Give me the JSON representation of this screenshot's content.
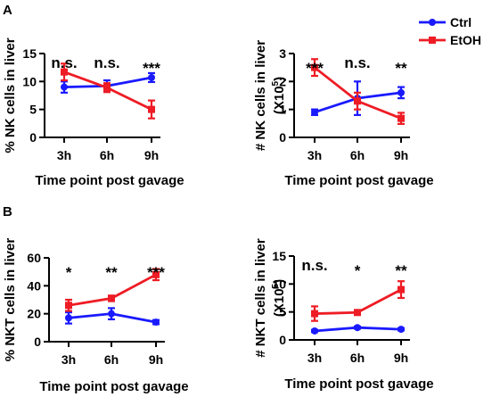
{
  "panel_labels": [
    "A",
    "B"
  ],
  "colors": {
    "Ctrl": "#1a1aff",
    "EtOH": "#ee1c24"
  },
  "legend": [
    {
      "name": "Ctrl",
      "color": "#1a1aff",
      "marker": "circle"
    },
    {
      "name": "EtOH",
      "color": "#ee1c24",
      "marker": "square"
    }
  ],
  "chart_data": [
    {
      "type": "line",
      "ylabel": "% NK cells in liver",
      "xlabel": "Time point post gavage",
      "categories": [
        "3h",
        "6h",
        "9h"
      ],
      "ylim": [
        0,
        15
      ],
      "yticks": [
        0,
        5,
        10,
        15
      ],
      "series": [
        {
          "name": "Ctrl",
          "values": [
            9.0,
            9.2,
            10.7
          ],
          "errors": [
            1.0,
            1.0,
            0.8
          ]
        },
        {
          "name": "EtOH",
          "values": [
            11.7,
            8.9,
            5.0
          ],
          "errors": [
            1.5,
            0.8,
            1.6
          ]
        }
      ],
      "significance": [
        "n.s.",
        "n.s.",
        "***"
      ]
    },
    {
      "type": "line",
      "ylabel": "# NK cells in liver",
      "yunit": "(X10",
      "yunit_exp": "5",
      "yunit_close": ")",
      "xlabel": "Time point post gavage",
      "categories": [
        "3h",
        "6h",
        "9h"
      ],
      "ylim": [
        0,
        3
      ],
      "yticks": [
        0,
        1,
        2,
        3
      ],
      "series": [
        {
          "name": "Ctrl",
          "values": [
            0.9,
            1.4,
            1.6
          ],
          "errors": [
            0.1,
            0.6,
            0.2
          ]
        },
        {
          "name": "EtOH",
          "values": [
            2.5,
            1.3,
            0.68
          ],
          "errors": [
            0.3,
            0.3,
            0.2
          ]
        }
      ],
      "significance": [
        "***",
        "n.s.",
        "**"
      ]
    },
    {
      "type": "line",
      "ylabel": "% NKT cells in liver",
      "xlabel": "Time point post gavage",
      "categories": [
        "3h",
        "6h",
        "9h"
      ],
      "ylim": [
        0,
        60
      ],
      "yticks": [
        0,
        20,
        40,
        60
      ],
      "series": [
        {
          "name": "Ctrl",
          "values": [
            17,
            20,
            14
          ],
          "errors": [
            4,
            4,
            1.5
          ]
        },
        {
          "name": "EtOH",
          "values": [
            26,
            31,
            48
          ],
          "errors": [
            4,
            2,
            4
          ]
        }
      ],
      "significance": [
        "*",
        "**",
        "***"
      ]
    },
    {
      "type": "line",
      "ylabel": "# NKT cells in liver",
      "yunit": "(X10",
      "yunit_exp": "5",
      "yunit_close": ")",
      "xlabel": "Time point post gavage",
      "categories": [
        "3h",
        "6h",
        "9h"
      ],
      "ylim": [
        0,
        15
      ],
      "yticks": [
        0,
        5,
        10,
        15
      ],
      "series": [
        {
          "name": "Ctrl",
          "values": [
            1.6,
            2.2,
            1.9
          ],
          "errors": [
            0.2,
            0.2,
            0.2
          ]
        },
        {
          "name": "EtOH",
          "values": [
            4.7,
            4.9,
            9.0
          ],
          "errors": [
            1.3,
            0.3,
            1.5
          ]
        }
      ],
      "significance": [
        "n.s.",
        "*",
        "**"
      ]
    }
  ]
}
